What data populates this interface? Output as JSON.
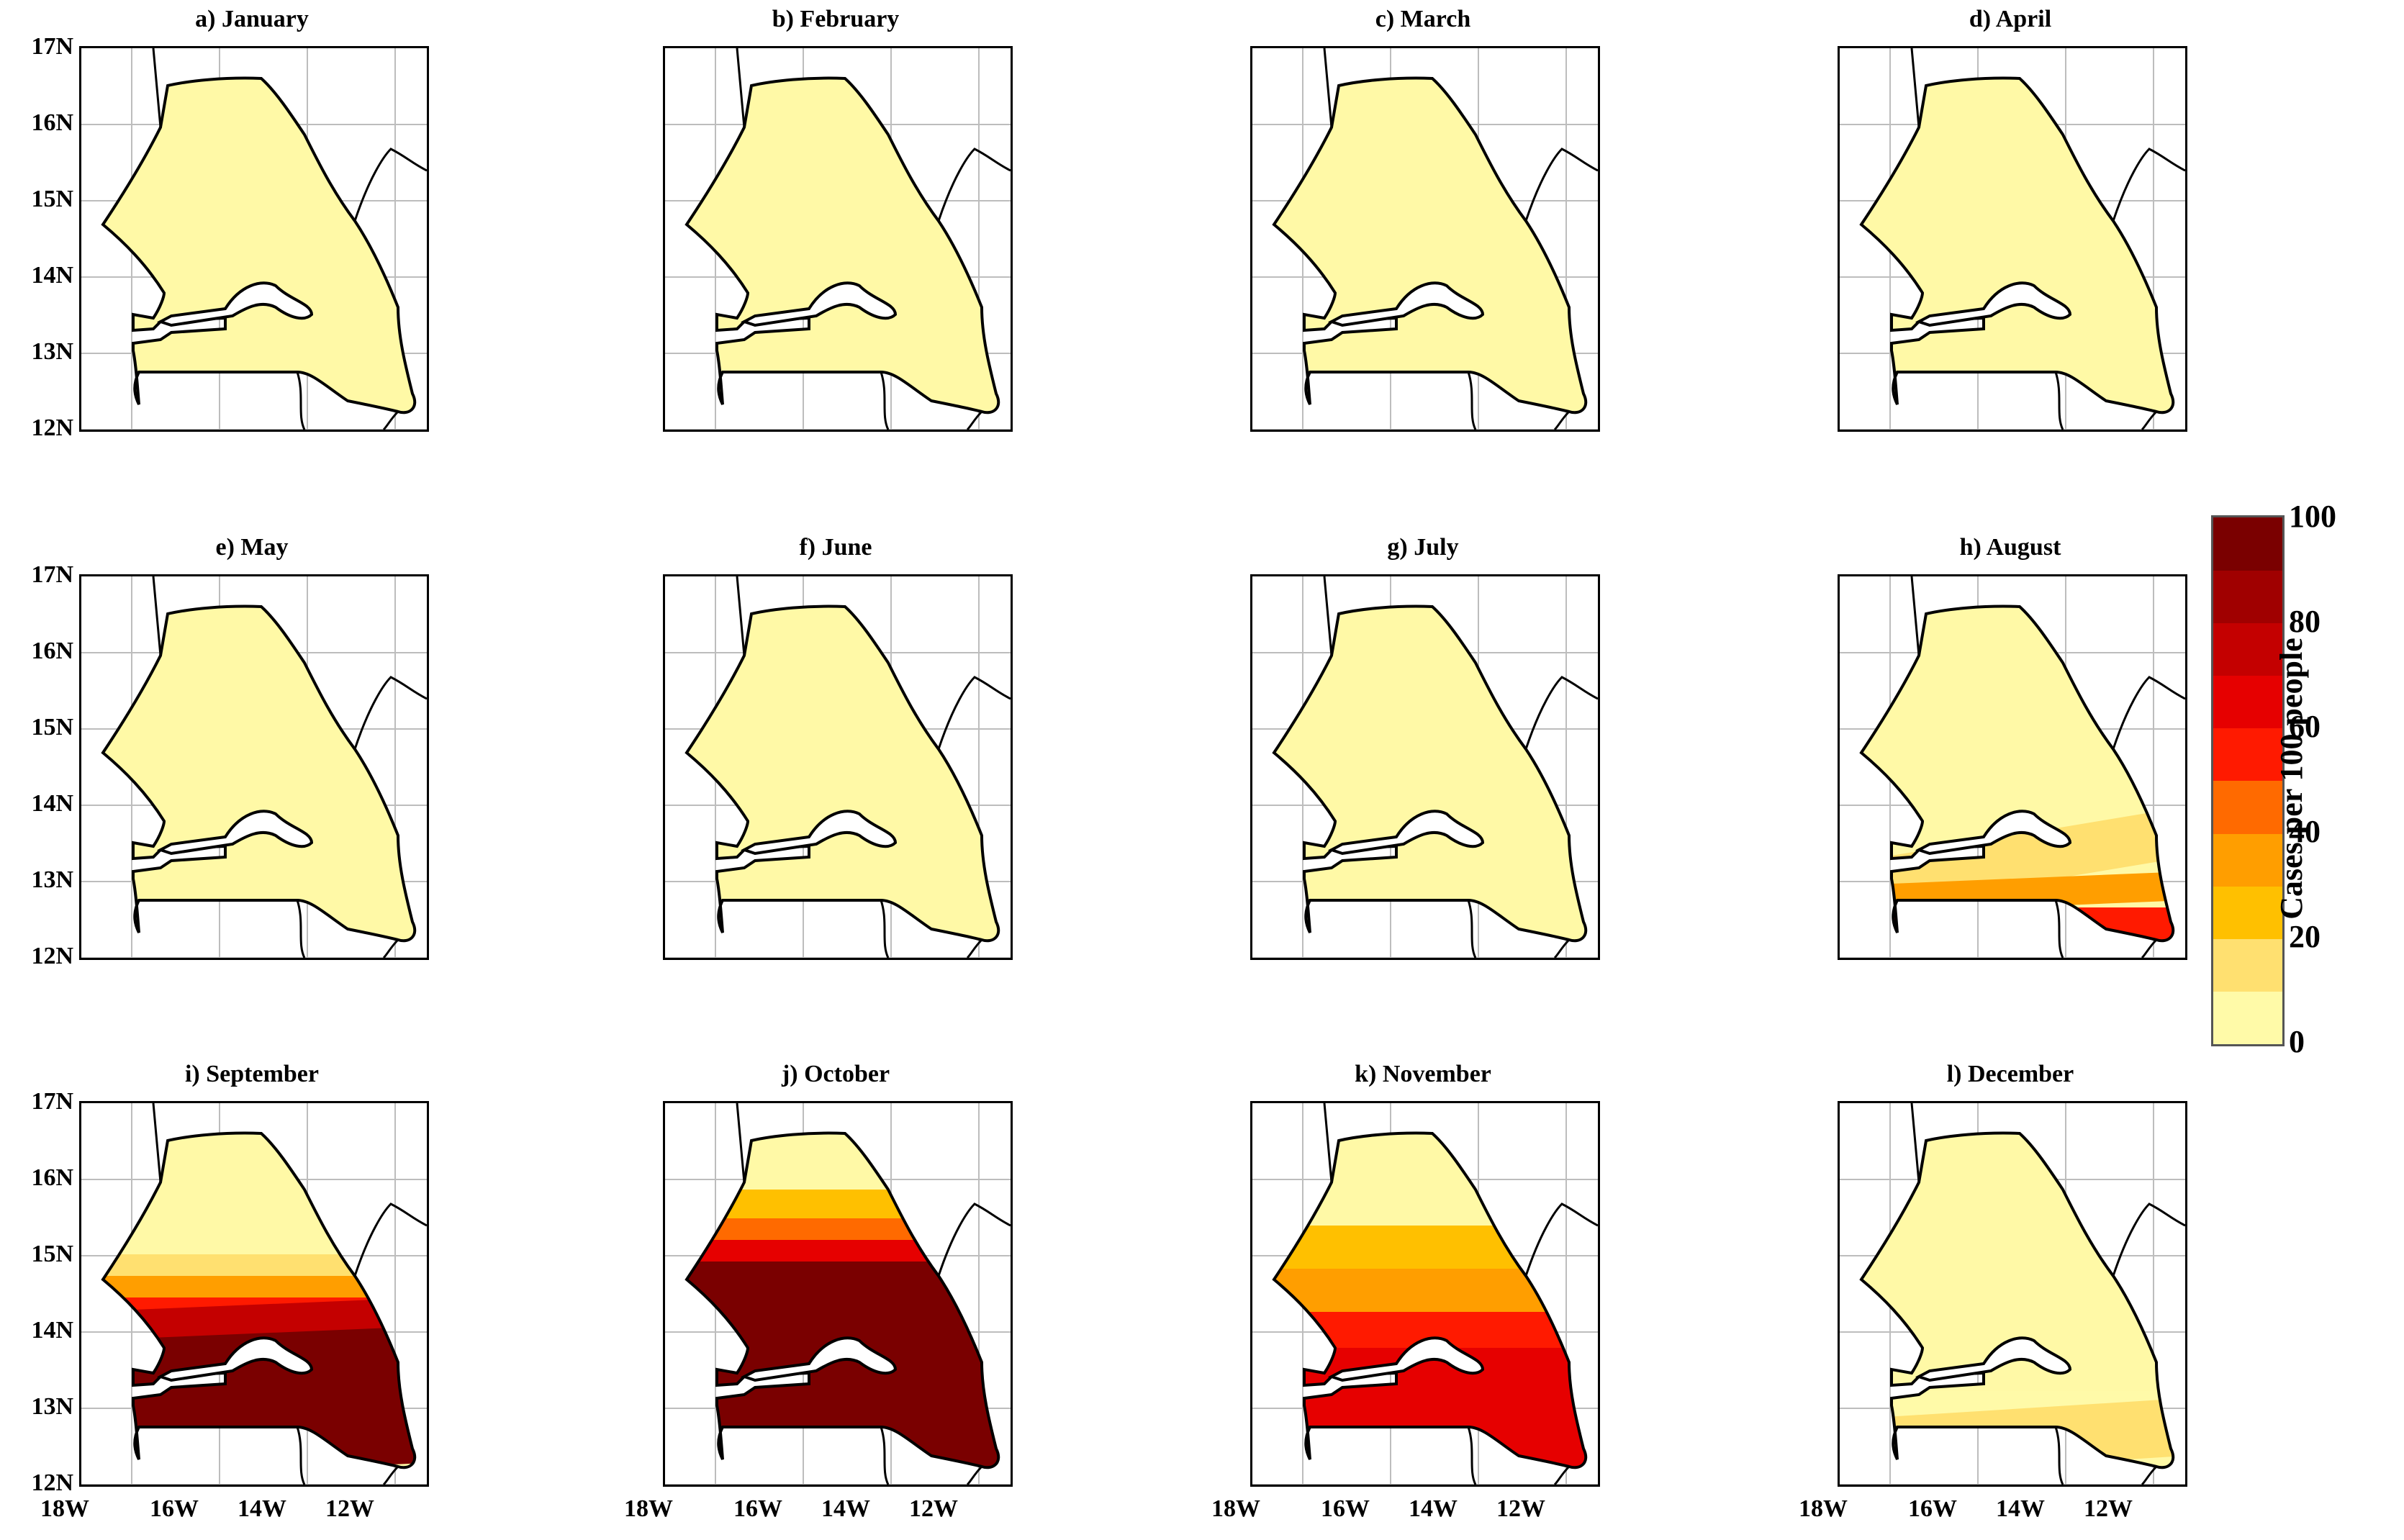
{
  "figure": {
    "panels": [
      {
        "title": "a) January",
        "hotspot": 0
      },
      {
        "title": "b) February",
        "hotspot": 0
      },
      {
        "title": "c) March",
        "hotspot": 0
      },
      {
        "title": "d) April",
        "hotspot": 0
      },
      {
        "title": "e) May",
        "hotspot": 0
      },
      {
        "title": "f) June",
        "hotspot": 0
      },
      {
        "title": "g) July",
        "hotspot": 0
      },
      {
        "title": "h) August",
        "hotspot": 1
      },
      {
        "title": "i) September",
        "hotspot": 2
      },
      {
        "title": "j) October",
        "hotspot": 3
      },
      {
        "title": "k) November",
        "hotspot": 4
      },
      {
        "title": "l) December",
        "hotspot": 5
      }
    ],
    "lat_labels": [
      "17N",
      "16N",
      "15N",
      "14N",
      "13N",
      "12N"
    ],
    "lon_labels": [
      "18W",
      "16W",
      "14W",
      "12W"
    ],
    "colorbar": {
      "label": "Cases per 100 people",
      "ticks": [
        "100",
        "80",
        "60",
        "40",
        "20",
        "0"
      ],
      "colors": [
        "#FFFAA8",
        "#FFE070",
        "#FFC000",
        "#FF9E00",
        "#FF6A00",
        "#FF1A00",
        "#E60000",
        "#C40000",
        "#A00000",
        "#7A0000"
      ]
    },
    "map_colors": {
      "land": "#FFF9A6",
      "border": "#000000",
      "grid": "#bdbdbd"
    }
  }
}
